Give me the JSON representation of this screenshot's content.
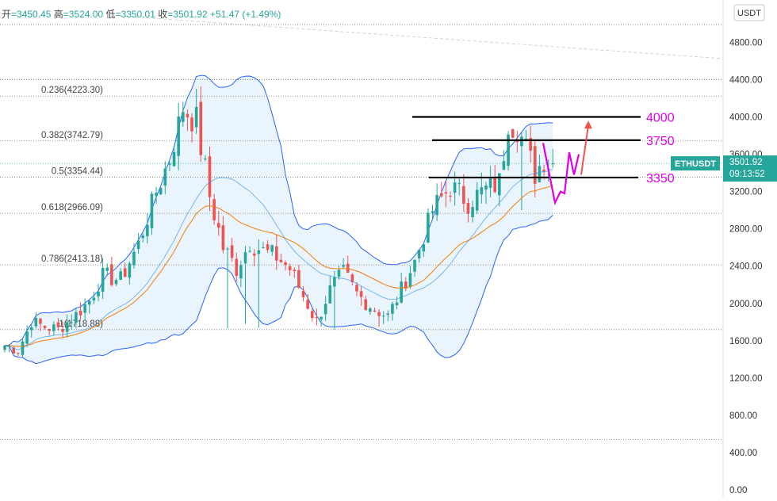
{
  "header": {
    "open_label": "开",
    "open_value": "=3450.45",
    "high_label": "高",
    "high_value": "=3524.00",
    "low_label": "低",
    "low_value": "=3350.01",
    "close_label": "收",
    "close_value": "=3501.92",
    "change_value": "+51.47 (+1.49%)"
  },
  "currency_button": "USDT",
  "colors": {
    "up": "#26a69a",
    "down": "#ef5350",
    "band": "#2962ff",
    "ema": "#f57c00",
    "mid": "#1e88e5",
    "magenta": "#e000e0",
    "arrow": "#ef5350",
    "tag": "#26a69a"
  },
  "chart_data": {
    "type": "candlestick",
    "symbol": "ETHUSDT",
    "price_tag": {
      "value": "3501.92",
      "countdown": "09:13:52"
    },
    "y_axis": {
      "ticks": [
        0,
        400,
        800,
        1200,
        1600,
        2000,
        2400,
        2800,
        3200,
        3600,
        4000,
        4400,
        4800
      ],
      "labels": [
        "0.00",
        "400.00",
        "800.00",
        "1200.00",
        "1600.00",
        "2000.00",
        "2400.00",
        "2800.00",
        "3200.00",
        "3600.00",
        "4000.00",
        "4400.00",
        "4800.00"
      ],
      "ylim": [
        0,
        5050
      ]
    },
    "fib_levels": [
      {
        "label": "0.236(4223.30)",
        "value": 4223.3
      },
      {
        "label": "0.382(3742.79)",
        "value": 3742.79
      },
      {
        "label": "0.5(3354.44)",
        "value": 3354.44
      },
      {
        "label": "0.618(2966.09)",
        "value": 2966.09
      },
      {
        "label": "0.786(2413.18)",
        "value": 2413.18
      },
      {
        "label": "1(1718.88)",
        "value": 1718.88
      }
    ],
    "extra_dotted_levels": [
      4990,
      4400,
      540
    ],
    "key_levels": [
      {
        "label": "4000",
        "value": 4000
      },
      {
        "label": "3750",
        "value": 3750
      },
      {
        "label": "3350",
        "value": 3350
      }
    ],
    "last_close": 3501.92,
    "anchors": [
      [
        0,
        1550
      ],
      [
        3,
        1500
      ],
      [
        6,
        1800
      ],
      [
        9,
        1750
      ],
      [
        12,
        1720
      ],
      [
        16,
        1880
      ],
      [
        19,
        2030
      ],
      [
        22,
        2300
      ],
      [
        26,
        2250
      ],
      [
        30,
        2640
      ],
      [
        34,
        3200
      ],
      [
        37,
        3550
      ],
      [
        40,
        4100
      ],
      [
        43,
        3950
      ],
      [
        46,
        3150
      ],
      [
        49,
        2600
      ],
      [
        52,
        2380
      ],
      [
        55,
        2650
      ],
      [
        58,
        2560
      ],
      [
        61,
        2500
      ],
      [
        64,
        2370
      ],
      [
        67,
        2080
      ],
      [
        70,
        1800
      ],
      [
        73,
        2150
      ],
      [
        76,
        2330
      ],
      [
        79,
        2100
      ],
      [
        83,
        1940
      ],
      [
        86,
        1860
      ],
      [
        88,
        2050
      ],
      [
        92,
        2450
      ],
      [
        96,
        3000
      ],
      [
        100,
        3250
      ],
      [
        104,
        3100
      ],
      [
        108,
        3220
      ],
      [
        111,
        3300
      ],
      [
        113,
        3950
      ],
      [
        115,
        3900
      ],
      [
        117,
        3650
      ],
      [
        119,
        3400
      ],
      [
        121,
        3550
      ],
      [
        123,
        3480
      ]
    ],
    "candle_count": 124
  }
}
